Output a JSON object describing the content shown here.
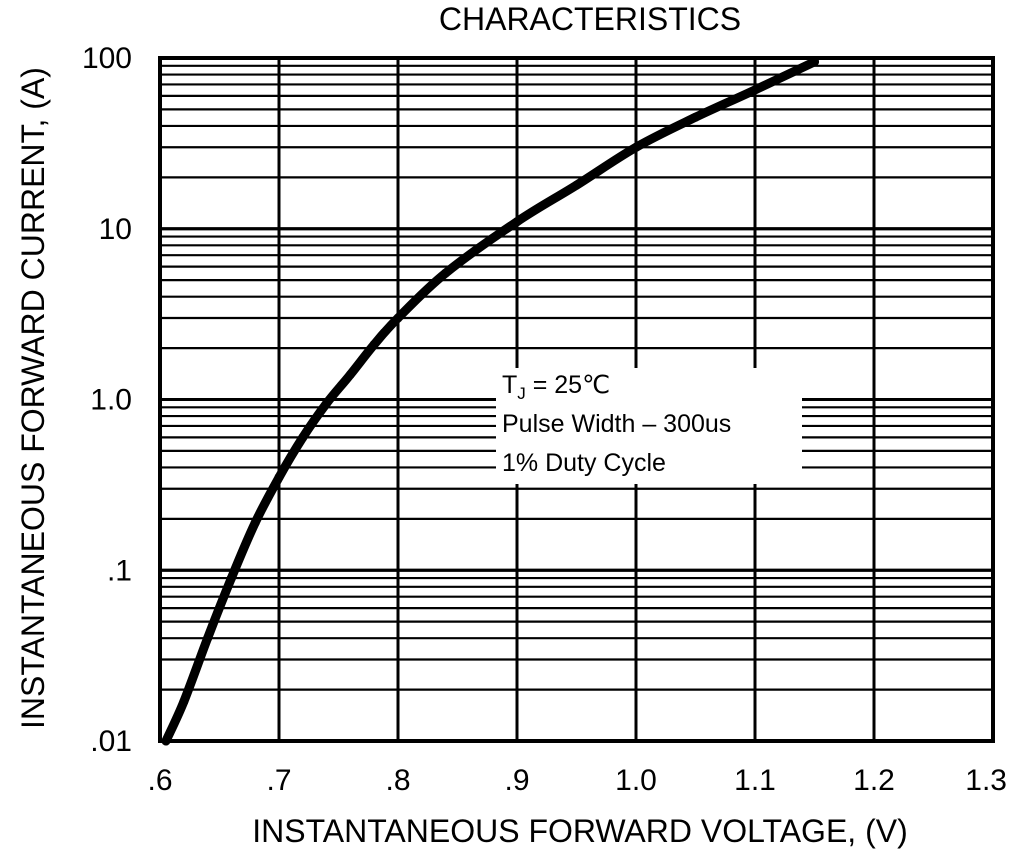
{
  "chart_data": {
    "type": "line",
    "title": "CHARACTERISTICS",
    "xlabel": "INSTANTANEOUS FORWARD VOLTAGE, (V)",
    "ylabel": "INSTANTANEOUS FORWARD CURRENT, (A)",
    "xlim": [
      0.6,
      1.3
    ],
    "ylim": [
      0.01,
      100
    ],
    "yscale": "log",
    "grid": true,
    "x_tick_labels": [
      ".6",
      ".7",
      ".8",
      ".9",
      "1.0",
      "1.1",
      "1.2",
      "1.3"
    ],
    "y_tick_labels": [
      ".01",
      ".1",
      "1.0",
      "10",
      "100"
    ],
    "annotation": {
      "line1_main": "T",
      "line1_sub": "J",
      "line1_rest": " = 25℃",
      "line2": "Pulse Width – 300us",
      "line3": "1% Duty Cycle"
    },
    "series": [
      {
        "x": [
          0.605,
          0.62,
          0.64,
          0.66,
          0.68,
          0.7,
          0.72,
          0.74,
          0.76,
          0.78,
          0.8,
          0.84,
          0.9,
          0.95,
          1.0,
          1.05,
          1.1,
          1.15
        ],
        "y": [
          0.01,
          0.017,
          0.04,
          0.09,
          0.19,
          0.35,
          0.6,
          0.95,
          1.4,
          2.1,
          3.0,
          5.5,
          11,
          18,
          30,
          45,
          65,
          95
        ]
      }
    ]
  }
}
